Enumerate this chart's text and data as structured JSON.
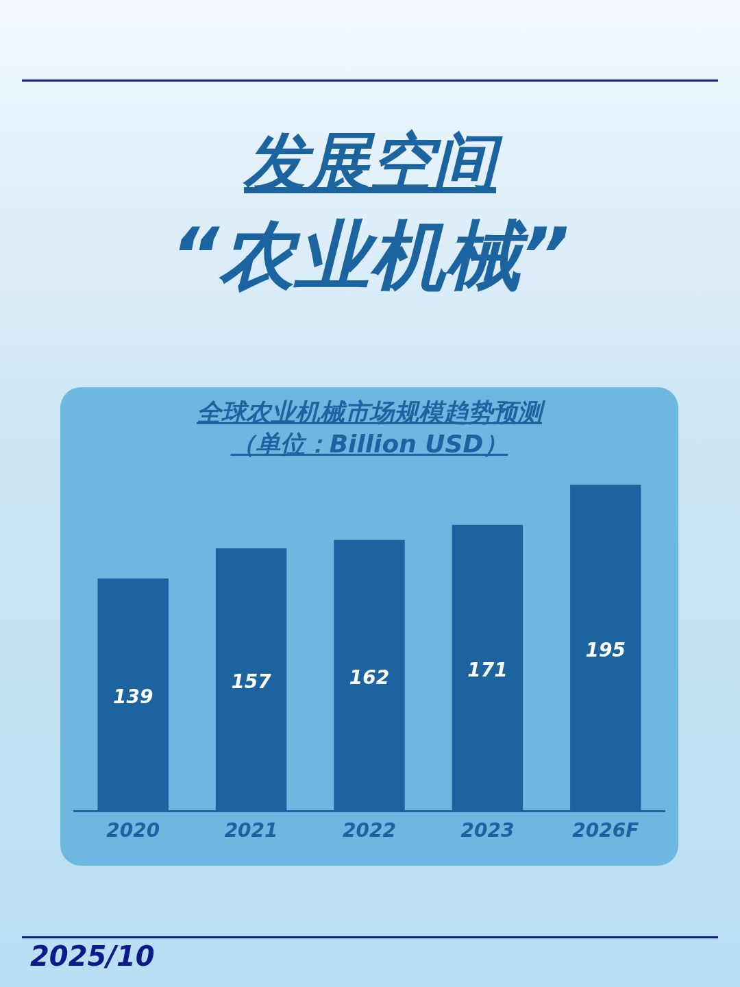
{
  "chart_data": {
    "type": "bar",
    "title": "全球农业机械市场规模趋势预测",
    "subtitle": "（单位：Billion USD）",
    "categories": [
      "2020",
      "2021",
      "2022",
      "2023",
      "2026F"
    ],
    "values": [
      139,
      157,
      162,
      171,
      195
    ],
    "color": "#1c64a0",
    "data_labels": true,
    "tick_labels": "x",
    "grid": false,
    "annotations": [
      "发展空间",
      "“农业机械”",
      "2025/10"
    ]
  }
}
